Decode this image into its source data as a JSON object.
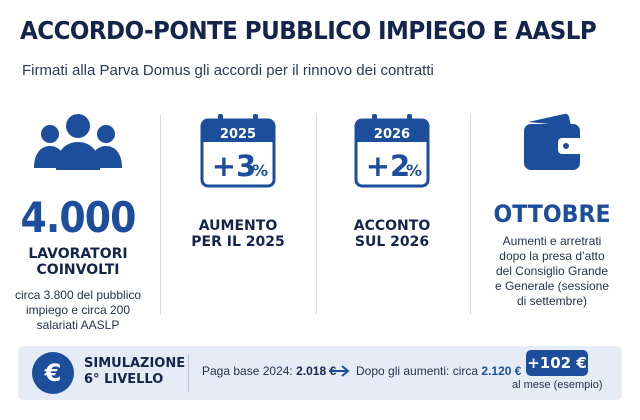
{
  "header": {
    "title": "ACCORDO-PONTE PUBBLICO IMPIEGO E AASLP",
    "subtitle": "Firmati alla Parva Domus gli accordi per il rinnovo dei contratti"
  },
  "columns": [
    {
      "icon": "people-icon",
      "value": "4.000",
      "heading_line1": "LAVORATORI",
      "heading_line2": "COINVOLTI",
      "note_line1": "circa 3.800 del pubblico",
      "note_line2": "impiego e circa 200",
      "note_line3": "salariati AASLP"
    },
    {
      "icon": "calendar-icon",
      "year": "2025",
      "value": "+3",
      "unit": "%",
      "heading_line1": "AUMENTO",
      "heading_line2": "PER IL 2025"
    },
    {
      "icon": "calendar-icon",
      "year": "2026",
      "value": "+2",
      "unit": "%",
      "heading_line1": "ACCONTO",
      "heading_line2": "SUL 2026"
    },
    {
      "icon": "wallet-icon",
      "value": "OTTOBRE",
      "note_line1": "Aumenti e arretrati",
      "note_line2": "dopo la presa d’atto",
      "note_line3": "del Consiglio Grande",
      "note_line4": "e Generale (sessione",
      "note_line5": "di settembre)"
    }
  ],
  "simulation": {
    "icon": "euro-icon",
    "label_line1": "SIMULAZIONE",
    "label_line2": "6° LIVELLO",
    "base_label": "Paga base 2024:",
    "base_value": "2.018 €",
    "after_label": "Dopo gli aumenti: circa",
    "after_value": "2.120 €",
    "increase": "+102 €",
    "increase_note": "al mese (esempio)"
  },
  "colors": {
    "accent": "#1c4e9c",
    "title": "#15244a",
    "panel": "#e6ecf5"
  }
}
